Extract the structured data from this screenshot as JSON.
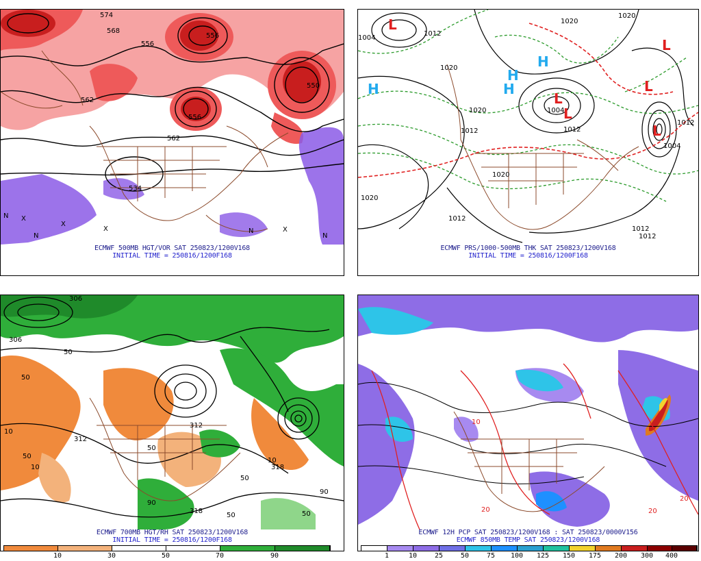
{
  "panels": {
    "p500": {
      "line1": "ECMWF 500MB HGT/VOR SAT 250823/1200V168",
      "line2": "INITIAL TIME = 250816/1200F168",
      "contour_labels": [
        "574",
        "568",
        "556",
        "556",
        "562",
        "550",
        "556",
        "562",
        "534"
      ],
      "marks": [
        "X",
        "X",
        "X",
        "X",
        "N",
        "N",
        "N",
        "N"
      ]
    },
    "pmsl": {
      "line1": "ECMWF PRS/1000-500MB THK SAT 250823/1200V168",
      "line2": "INITIAL TIME = 250816/1200F168",
      "highs": [
        "H",
        "H",
        "H",
        "H"
      ],
      "lows": [
        "L",
        "L",
        "L",
        "L",
        "L",
        "L"
      ],
      "isobar_labels": [
        "1020",
        "1012",
        "1004",
        "1020",
        "1020",
        "1012",
        "1004",
        "1012",
        "1020",
        "1020",
        "1012",
        "1012",
        "1012",
        "1004",
        "1012",
        "1020"
      ]
    },
    "p700": {
      "line1": "ECMWF 700MB HGT/RH SAT 250823/1200V168",
      "line2": "INITIAL TIME = 250816/1200F168",
      "contour_labels": [
        "312",
        "318",
        "306",
        "312",
        "318",
        "306"
      ],
      "rh_labels": [
        "50",
        "50",
        "10",
        "50",
        "10",
        "50",
        "90",
        "50",
        "50",
        "90",
        "10",
        "50"
      ],
      "colorbar_ticks": [
        "10",
        "30",
        "50",
        "70",
        "90"
      ]
    },
    "ppcp": {
      "line1": "ECMWF 12H PCP SAT 250823/1200V168 : SAT 250823/0000V156",
      "line2": "ECMWF 850MB TEMP SAT 250823/1200V168",
      "temp_labels": [
        "20",
        "20",
        "10",
        "20"
      ],
      "colorbar_ticks": [
        "1",
        "10",
        "25",
        "50",
        "75",
        "100",
        "125",
        "150",
        "175",
        "200",
        "300",
        "400"
      ]
    }
  },
  "colors": {
    "vort_light": "#f6a3a3",
    "vort_mid": "#ee5a5a",
    "vort_dark": "#c81e1e",
    "neg_vort": "#8b5ae6",
    "borders": "#8b4a2b",
    "rh_orange": "#f08a3c",
    "rh_green": "#2fae3a",
    "rh_dark_green": "#1f8a2a",
    "pcp_purple": "#8e6de6",
    "pcp_cyan": "#2ec4e8",
    "pcp_blue": "#1e90ff",
    "thickness_red": "#e02020",
    "thickness_green": "#2a9a2a",
    "high_blue": "#22aaee",
    "low_red": "#e02020"
  },
  "legends": {
    "rh_colors": [
      "#f08a3c",
      "#f3b27b",
      "#ffffff",
      "#8fd68a",
      "#2fae3a",
      "#1f8a2a"
    ],
    "pcp_colors": [
      "#ffffff",
      "#a78af0",
      "#8e6de6",
      "#6f6fe6",
      "#2ec4e8",
      "#1e90ff",
      "#2aa0d0",
      "#21c2a0",
      "#f2d22e",
      "#e07a20",
      "#c81e1e",
      "#8b0000",
      "#5a0000"
    ]
  }
}
